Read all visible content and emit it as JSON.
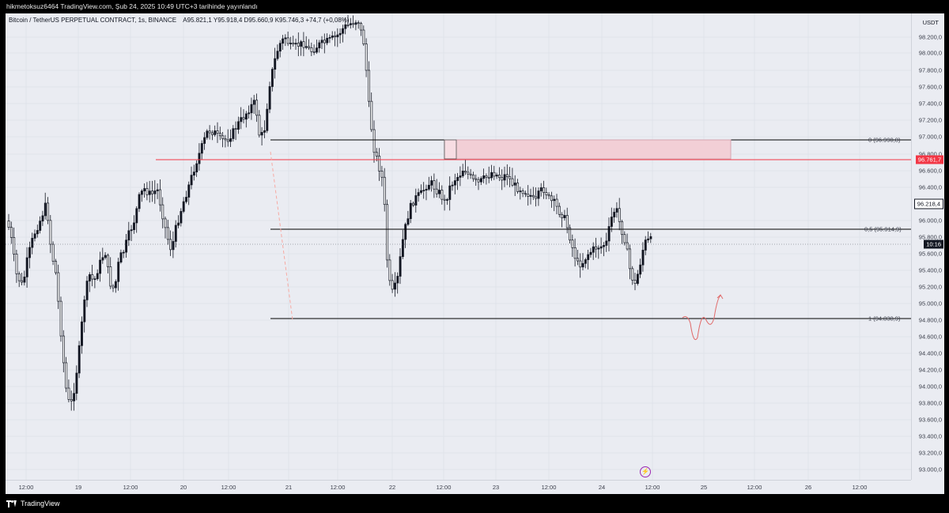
{
  "header": {
    "text": "hikmetoksuz6464 TradingView.com, Şub 24, 2025 10:49 UTC+3 tarihinde yayınlandı"
  },
  "legend": {
    "symbol": "Bitcoin / TetherUS PERPETUAL CONTRACT, 1s, BINANCE",
    "ohlc": "A95.821,1  Y95.918,4  D95.660,9  K95.746,3  +74,7 (+0,08%)"
  },
  "price_axis": {
    "unit": "USDT",
    "labels": [
      "98.200,0",
      "98.000,0",
      "97.800,0",
      "97.600,0",
      "97.400,0",
      "97.200,0",
      "97.000,0",
      "96.800,0",
      "96.600,0",
      "96.400,0",
      "96.000,0",
      "95.800,0",
      "95.600,0",
      "95.400,0",
      "95.200,0",
      "95.000,0",
      "94.800,0",
      "94.600,0",
      "94.400,0",
      "94.200,0",
      "94.000,0",
      "93.800,0",
      "93.600,0",
      "93.400,0",
      "93.200,0",
      "93.000,0"
    ],
    "tags": [
      {
        "text": "96.761,7",
        "bg": "#f23645",
        "fg": "#ffffff"
      },
      {
        "text": "96.218,4",
        "bg": "#ffffff",
        "fg": "#131722"
      },
      {
        "text": "10:16",
        "bg": "#131722",
        "fg": "#ffffff"
      }
    ]
  },
  "time_axis": {
    "labels": [
      "12:00",
      "19",
      "12:00",
      "20",
      "12:00",
      "21",
      "12:00",
      "22",
      "12:00",
      "23",
      "12:00",
      "24",
      "12:00",
      "25",
      "12:00",
      "26",
      "12:00"
    ]
  },
  "fib_levels": [
    {
      "text": "0 (96.990,8)"
    },
    {
      "text": "0,5 (95.914,9)"
    },
    {
      "text": "1 (94.838,9)"
    }
  ],
  "footer": {
    "brand": "TradingView"
  },
  "colors": {
    "panel_bg": "#eaecf2",
    "candle": "#131722",
    "zone_fill": "#f2cfd6",
    "red_line": "#f23645",
    "fib_line": "#000000"
  },
  "icons": {
    "bolt": "lightning-icon",
    "logo": "tradingview-logo-icon"
  }
}
